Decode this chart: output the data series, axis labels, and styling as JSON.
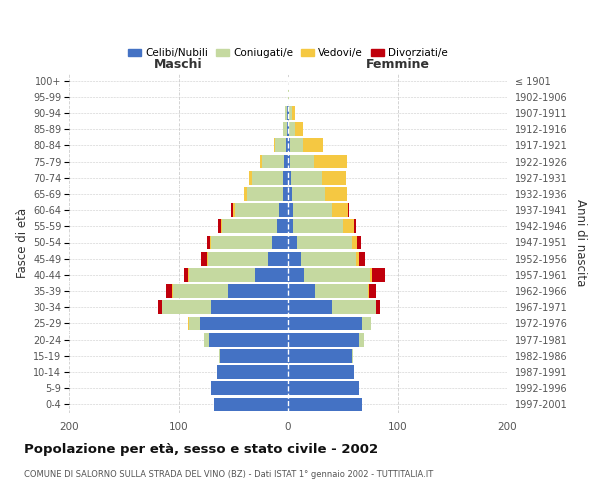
{
  "age_groups": [
    "0-4",
    "5-9",
    "10-14",
    "15-19",
    "20-24",
    "25-29",
    "30-34",
    "35-39",
    "40-44",
    "45-49",
    "50-54",
    "55-59",
    "60-64",
    "65-69",
    "70-74",
    "75-79",
    "80-84",
    "85-89",
    "90-94",
    "95-99",
    "100+"
  ],
  "birth_years": [
    "1997-2001",
    "1992-1996",
    "1987-1991",
    "1982-1986",
    "1977-1981",
    "1972-1976",
    "1967-1971",
    "1962-1966",
    "1957-1961",
    "1952-1956",
    "1947-1951",
    "1942-1946",
    "1937-1941",
    "1932-1936",
    "1927-1931",
    "1922-1926",
    "1917-1921",
    "1912-1916",
    "1907-1911",
    "1902-1906",
    "≤ 1901"
  ],
  "males": {
    "celibi": [
      68,
      70,
      65,
      62,
      72,
      80,
      70,
      55,
      30,
      18,
      15,
      10,
      8,
      5,
      5,
      4,
      2,
      1,
      1,
      0,
      0
    ],
    "coniugati": [
      0,
      0,
      0,
      1,
      5,
      10,
      45,
      50,
      60,
      55,
      55,
      50,
      40,
      32,
      28,
      20,
      10,
      4,
      2,
      0,
      0
    ],
    "vedovi": [
      0,
      0,
      0,
      0,
      0,
      1,
      0,
      1,
      1,
      1,
      1,
      1,
      2,
      3,
      3,
      2,
      1,
      0,
      0,
      0,
      0
    ],
    "divorziati": [
      0,
      0,
      0,
      0,
      0,
      0,
      4,
      5,
      4,
      5,
      3,
      3,
      2,
      0,
      0,
      0,
      0,
      0,
      0,
      0,
      0
    ]
  },
  "females": {
    "nubili": [
      68,
      65,
      60,
      58,
      65,
      68,
      40,
      25,
      15,
      12,
      8,
      5,
      5,
      4,
      3,
      2,
      2,
      1,
      1,
      0,
      0
    ],
    "coniugate": [
      0,
      0,
      0,
      1,
      4,
      8,
      40,
      48,
      60,
      50,
      50,
      45,
      35,
      30,
      28,
      22,
      12,
      5,
      3,
      1,
      0
    ],
    "vedove": [
      0,
      0,
      0,
      0,
      0,
      0,
      0,
      1,
      2,
      3,
      5,
      10,
      15,
      20,
      22,
      30,
      18,
      8,
      2,
      0,
      0
    ],
    "divorziate": [
      0,
      0,
      0,
      0,
      0,
      0,
      4,
      6,
      12,
      5,
      4,
      2,
      1,
      0,
      0,
      0,
      0,
      0,
      0,
      0,
      0
    ]
  },
  "colors": {
    "celibi_nubili": "#4472C4",
    "coniugati": "#C5D9A0",
    "vedovi": "#F5C842",
    "divorziati": "#C0000C"
  },
  "xlim": [
    -200,
    200
  ],
  "xticks": [
    -200,
    -100,
    0,
    100,
    200
  ],
  "xticklabels": [
    "200",
    "100",
    "0",
    "100",
    "200"
  ],
  "title": "Popolazione per età, sesso e stato civile - 2002",
  "subtitle": "COMUNE DI SALORNO SULLA STRADA DEL VINO (BZ) - Dati ISTAT 1° gennaio 2002 - TUTTITALIA.IT",
  "ylabel_left": "Fasce di età",
  "ylabel_right": "Anni di nascita",
  "header_left": "Maschi",
  "header_right": "Femmine",
  "background_color": "#ffffff",
  "grid_color": "#cccccc"
}
